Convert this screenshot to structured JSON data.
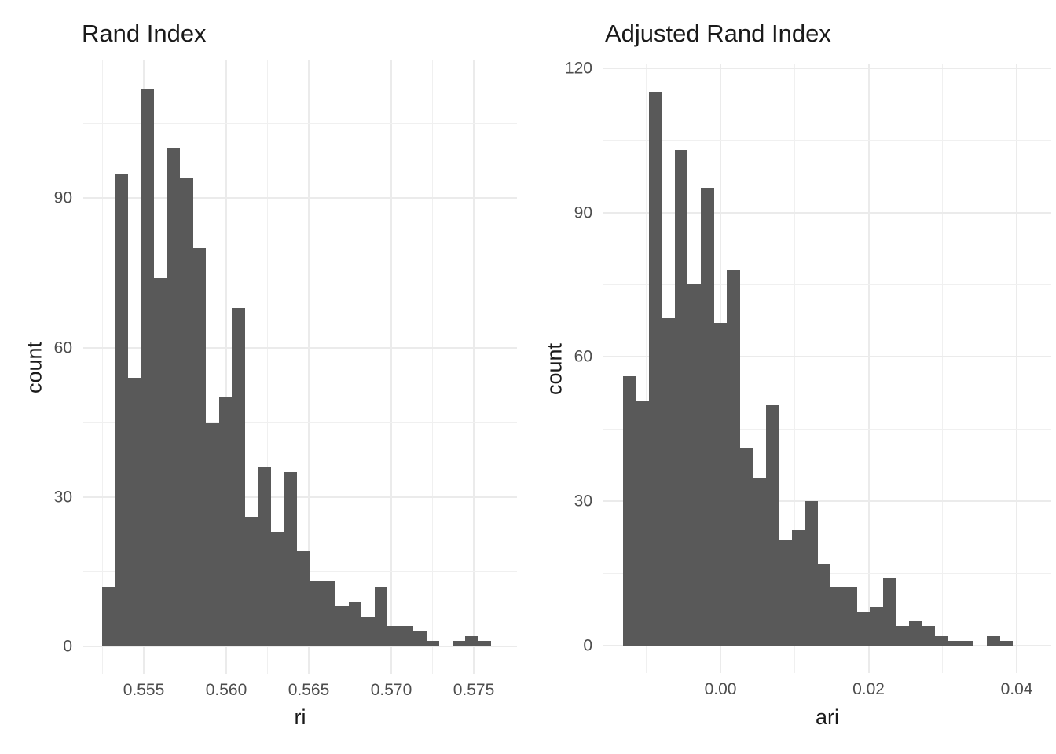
{
  "figure": {
    "background": "#FFFFFF",
    "bar_color": "#595959",
    "grid_major_color": "#EBEBEB",
    "grid_minor_color": "#F0F0F0",
    "tick_label_color": "#4D4D4D",
    "text_color": "#1A1A1A"
  },
  "chart_data": [
    {
      "type": "bar",
      "subtype": "histogram",
      "title": "Rand Index",
      "xlabel": "ri",
      "ylabel": "count",
      "grid": true,
      "legend": false,
      "bin_start": 0.55248,
      "bin_width": 0.000786,
      "counts": [
        12,
        95,
        54,
        112,
        74,
        100,
        94,
        80,
        45,
        50,
        68,
        26,
        36,
        23,
        35,
        19,
        13,
        13,
        8,
        9,
        6,
        12,
        4,
        4,
        3,
        1,
        0,
        1,
        2,
        1
      ],
      "total_n": 1000,
      "xlim": [
        0.5513,
        0.5777
      ],
      "ylim": [
        -5.6,
        117.6
      ],
      "x_ticks": [
        {
          "value": 0.555,
          "label": "0.555"
        },
        {
          "value": 0.56,
          "label": "0.560"
        },
        {
          "value": 0.565,
          "label": "0.565"
        },
        {
          "value": 0.57,
          "label": "0.570"
        },
        {
          "value": 0.575,
          "label": "0.575"
        }
      ],
      "x_minor": [
        0.5525,
        0.5575,
        0.5625,
        0.5675,
        0.5725,
        0.5775
      ],
      "y_ticks": [
        {
          "value": 0,
          "label": "0"
        },
        {
          "value": 30,
          "label": "30"
        },
        {
          "value": 60,
          "label": "60"
        },
        {
          "value": 90,
          "label": "90"
        }
      ],
      "y_minor": [
        15,
        45,
        75,
        105
      ]
    },
    {
      "type": "bar",
      "subtype": "histogram",
      "title": "Adjusted Rand Index",
      "xlabel": "ari",
      "ylabel": "count",
      "grid": true,
      "legend": false,
      "bin_start": -0.013188,
      "bin_width": 0.0017556,
      "counts": [
        56,
        51,
        115,
        68,
        103,
        75,
        95,
        67,
        78,
        41,
        35,
        50,
        22,
        24,
        30,
        17,
        12,
        12,
        7,
        8,
        14,
        4,
        5,
        4,
        2,
        1,
        1,
        0,
        2,
        1
      ],
      "total_n": 1000,
      "xlim": [
        -0.0158,
        0.042
      ],
      "ylim": [
        -5.75,
        120.75
      ],
      "x_ticks": [
        {
          "value": 0.0,
          "label": "0.00"
        },
        {
          "value": 0.02,
          "label": "0.02"
        },
        {
          "value": 0.04,
          "label": "0.04"
        }
      ],
      "x_minor": [
        -0.01,
        0.01,
        0.03
      ],
      "y_ticks": [
        {
          "value": 0,
          "label": "0"
        },
        {
          "value": 30,
          "label": "30"
        },
        {
          "value": 60,
          "label": "60"
        },
        {
          "value": 90,
          "label": "90"
        },
        {
          "value": 120,
          "label": "120"
        }
      ],
      "y_minor": [
        15,
        45,
        75,
        105
      ]
    }
  ]
}
